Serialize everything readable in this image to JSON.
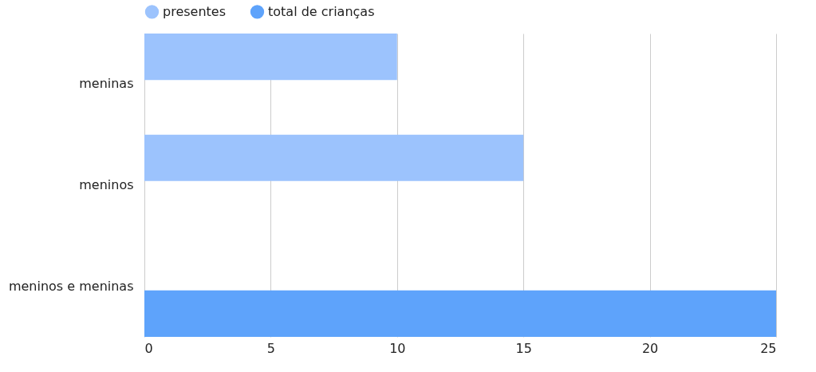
{
  "chart_data": {
    "type": "bar",
    "orientation": "horizontal",
    "categories": [
      "meninas",
      "meninos",
      "meninos e meninas"
    ],
    "series": [
      {
        "name": "presentes",
        "color": "#9cc3fd",
        "values": [
          10,
          15,
          null
        ]
      },
      {
        "name": "total de crianças",
        "color": "#5ea3fb",
        "values": [
          null,
          null,
          25
        ]
      }
    ],
    "xlim": [
      0,
      25
    ],
    "xticks": [
      0,
      5,
      10,
      15,
      20,
      25
    ],
    "grid": "x",
    "legend": "top"
  }
}
